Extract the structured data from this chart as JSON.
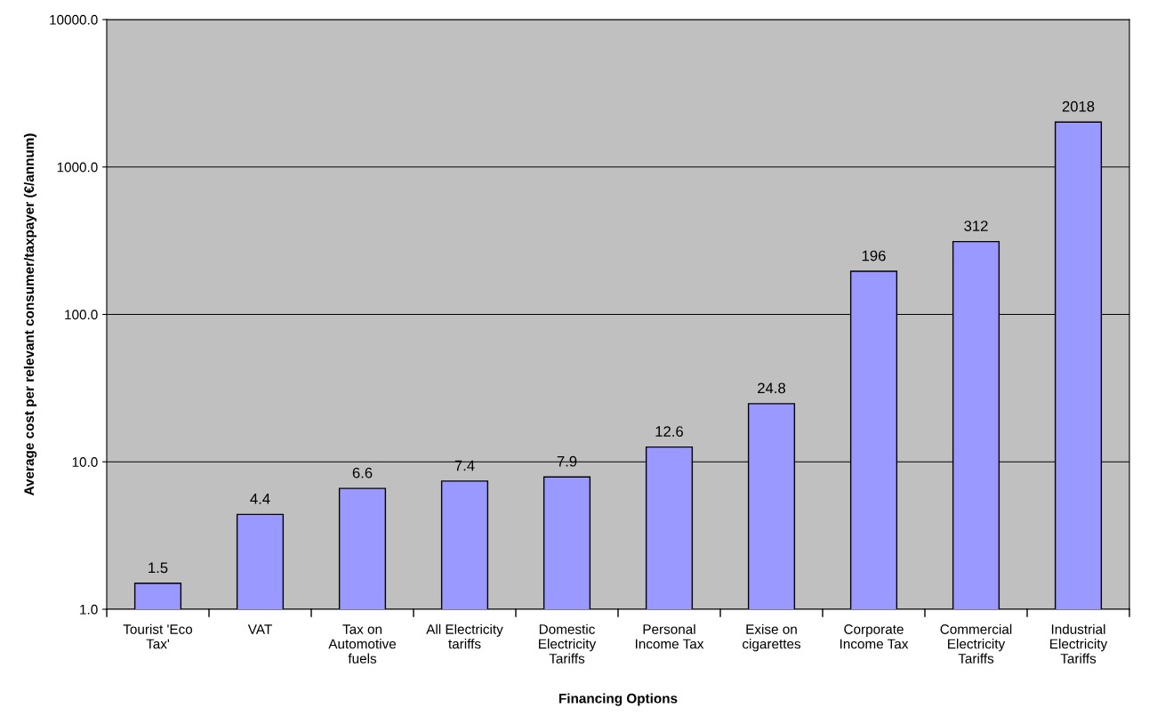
{
  "chart_data": {
    "type": "bar",
    "xlabel": "Financing Options",
    "ylabel": "Average cost per relevant consumer/taxpayer (€/annum)",
    "categories": [
      "Tourist 'Eco\nTax'",
      "VAT",
      "Tax on\nAutomotive\nfuels",
      "All Electricity\ntariffs",
      "Domestic\nElectricity\nTariffs",
      "Personal\nIncome Tax",
      "Exise on\ncigarettes",
      "Corporate\nIncome Tax",
      "Commercial\nElectricity\nTariffs",
      "Industrial\nElectricity\nTariffs"
    ],
    "values": [
      1.5,
      4.4,
      6.6,
      7.4,
      7.9,
      12.6,
      24.8,
      196,
      312,
      2018
    ],
    "color": "#9999ff",
    "log": "y",
    "ylim": [
      1,
      10000
    ],
    "yticks": [
      {
        "value": 1,
        "label": "1.0"
      },
      {
        "value": 10,
        "label": "10.0"
      },
      {
        "value": 100,
        "label": "100.0"
      },
      {
        "value": 1000,
        "label": "1000.0"
      },
      {
        "value": 10000,
        "label": "10000.0"
      }
    ],
    "grid": "y",
    "data_labels": true
  }
}
